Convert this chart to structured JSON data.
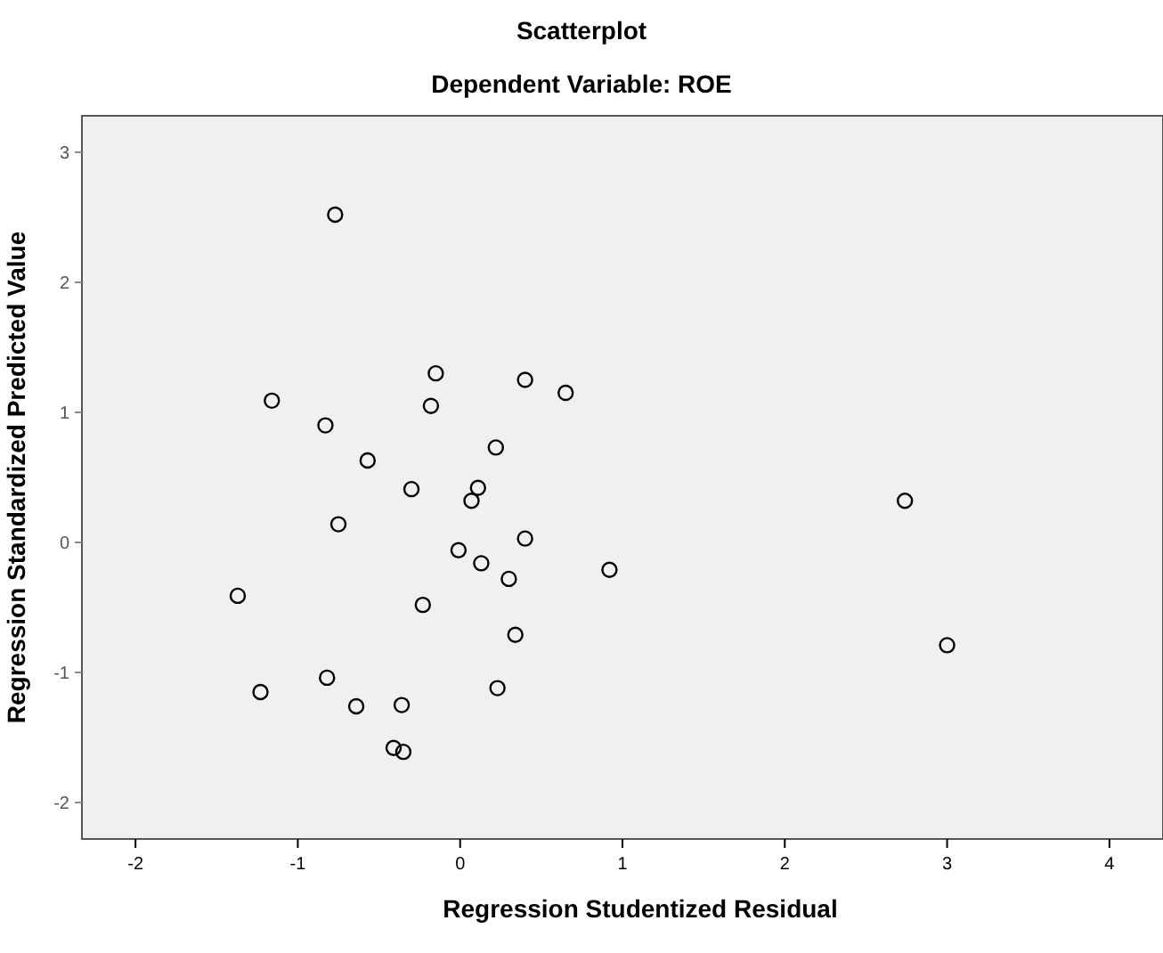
{
  "chart_data": {
    "type": "scatter",
    "title": "Scatterplot",
    "subtitle": "Dependent Variable: ROE",
    "xlabel": "Regression Studentized Residual",
    "ylabel": "Regression Standardized Predicted Value",
    "marker": "circle",
    "grid": false,
    "xlim": [
      -2.33,
      4.33
    ],
    "ylim": [
      -2.28,
      3.28
    ],
    "xticks": [
      -2,
      -1,
      0,
      1,
      2,
      3,
      4
    ],
    "yticks": [
      -2,
      -1,
      0,
      1,
      2,
      3
    ],
    "series": [
      {
        "color": "#000000",
        "x": [
          -0.77,
          -1.16,
          -0.83,
          -0.15,
          -0.18,
          0.4,
          0.65,
          -0.57,
          0.22,
          -0.3,
          0.11,
          0.07,
          -0.75,
          -0.01,
          0.4,
          0.13,
          0.3,
          -1.37,
          -0.23,
          0.34,
          -0.82,
          -1.23,
          -0.64,
          -0.36,
          0.23,
          -0.41,
          -0.35,
          0.92,
          2.74,
          3.0
        ],
        "values": [
          2.52,
          1.09,
          0.9,
          1.3,
          1.05,
          1.25,
          1.15,
          0.63,
          0.73,
          0.41,
          0.42,
          0.32,
          0.14,
          -0.06,
          0.03,
          -0.16,
          -0.28,
          -0.41,
          -0.48,
          -0.71,
          -1.04,
          -1.15,
          -1.26,
          -1.25,
          -1.12,
          -1.58,
          -1.61,
          -0.21,
          0.32,
          -0.79
        ]
      }
    ]
  }
}
